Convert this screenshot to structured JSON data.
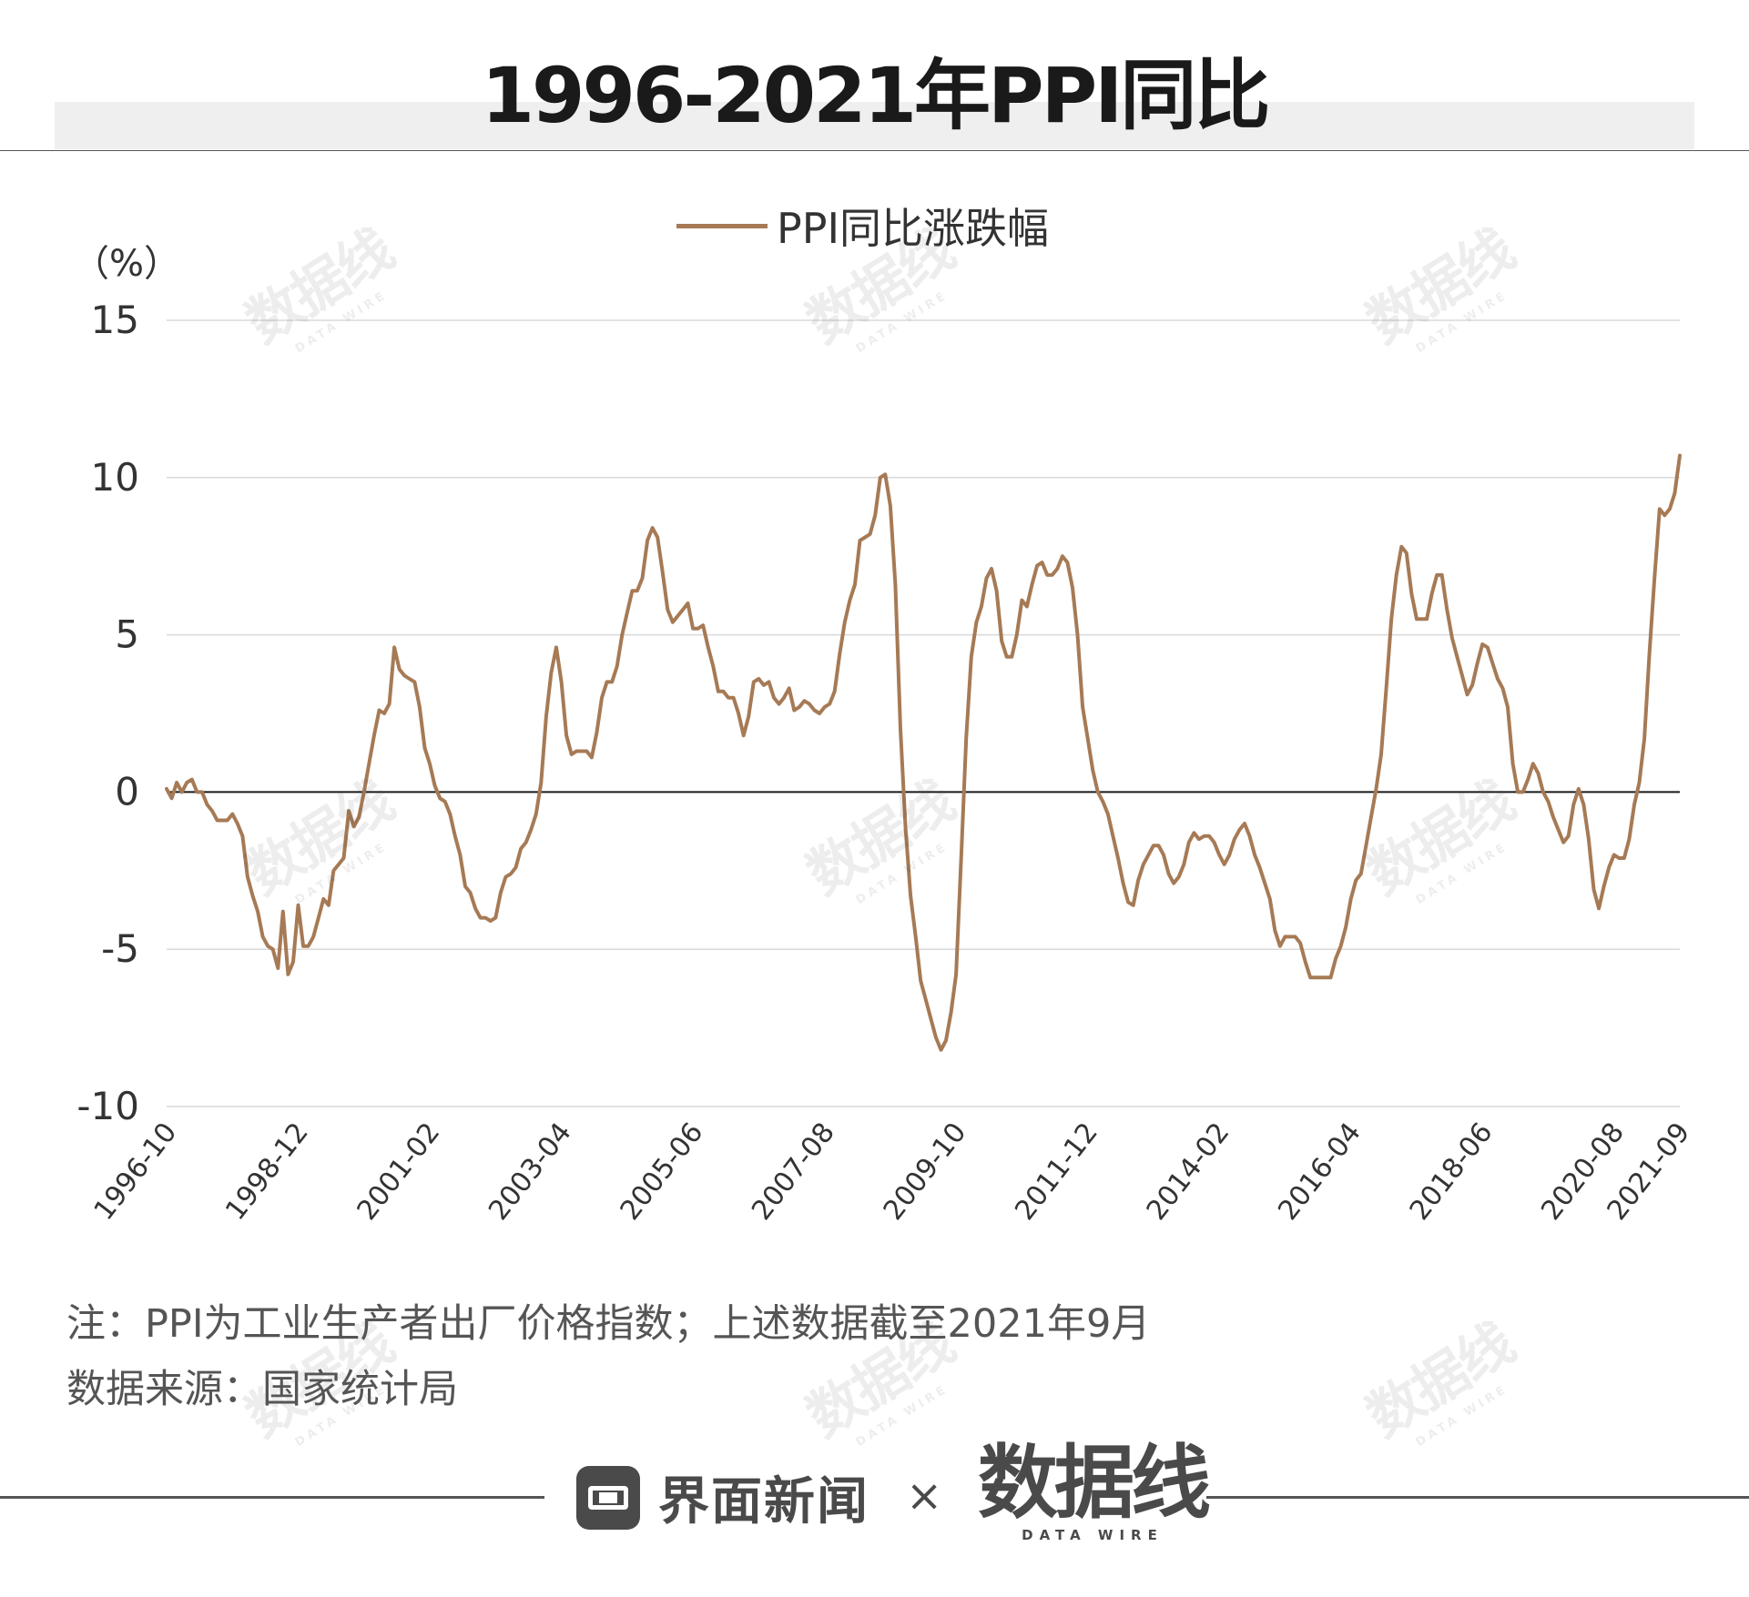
{
  "title": "1996-2021年PPI同比",
  "notes": {
    "line1": "注：PPI为工业生产者出厂价格指数；上述数据截至2021年9月",
    "line2": "数据来源：国家统计局"
  },
  "footer": {
    "brand_name": "界面新闻",
    "separator": "×",
    "partner_cn": "数据线",
    "partner_en": "DATA WIRE"
  },
  "watermark": {
    "cn": "数据线",
    "en": "DATA WIRE"
  },
  "colors": {
    "series": "#a67a55",
    "grid": "#d9d9d9",
    "zero_line": "#1a1a1a",
    "text": "#333333",
    "note_text": "#555555"
  },
  "chart_data": {
    "type": "line",
    "unit_label": "（%）",
    "ylim": [
      -10,
      15
    ],
    "yticks": [
      15,
      10,
      5,
      0,
      -5,
      -10
    ],
    "ytick_labels": [
      "15",
      "10",
      "5",
      "0",
      "-5",
      "-10"
    ],
    "x_start": "1996-10",
    "x_end": "2021-09",
    "frequency": "monthly",
    "x_tick_labels": [
      "1996-10",
      "1998-12",
      "2001-02",
      "2003-04",
      "2005-06",
      "2007-08",
      "2009-10",
      "2011-12",
      "2014-02",
      "2016-04",
      "2018-06",
      "2020-08",
      "2021-09"
    ],
    "grid": "horizontal",
    "legend_position": "top-center",
    "series": [
      {
        "name": "PPI同比涨跌幅",
        "values": [
          0.1,
          -0.2,
          0.3,
          0.0,
          0.3,
          0.4,
          0.0,
          0.0,
          -0.4,
          -0.6,
          -0.9,
          -0.9,
          -0.9,
          -0.7,
          -1.0,
          -1.4,
          -2.7,
          -3.3,
          -3.8,
          -4.6,
          -4.9,
          -5.0,
          -5.6,
          -3.8,
          -5.8,
          -5.4,
          -3.6,
          -4.9,
          -4.9,
          -4.6,
          -4.0,
          -3.4,
          -3.6,
          -2.5,
          -2.3,
          -2.1,
          -0.6,
          -1.1,
          -0.8,
          0.0,
          0.9,
          1.8,
          2.6,
          2.5,
          2.8,
          4.6,
          3.9,
          3.7,
          3.6,
          3.5,
          2.7,
          1.4,
          0.9,
          0.2,
          -0.2,
          -0.3,
          -0.7,
          -1.4,
          -2.0,
          -3.0,
          -3.2,
          -3.7,
          -4.0,
          -4.0,
          -4.1,
          -4.0,
          -3.2,
          -2.7,
          -2.6,
          -2.4,
          -1.8,
          -1.6,
          -1.2,
          -0.7,
          0.3,
          2.4,
          3.8,
          4.6,
          3.5,
          1.8,
          1.2,
          1.3,
          1.3,
          1.3,
          1.1,
          1.9,
          3.0,
          3.5,
          3.5,
          4.0,
          5.0,
          5.7,
          6.4,
          6.4,
          6.8,
          8.0,
          8.4,
          8.1,
          7.0,
          5.8,
          5.4,
          5.6,
          5.8,
          6.0,
          5.2,
          5.2,
          5.3,
          4.6,
          4.0,
          3.2,
          3.2,
          3.0,
          3.0,
          2.5,
          1.8,
          2.4,
          3.5,
          3.6,
          3.4,
          3.5,
          3.0,
          2.8,
          3.0,
          3.3,
          2.6,
          2.7,
          2.9,
          2.8,
          2.6,
          2.5,
          2.7,
          2.8,
          3.2,
          4.4,
          5.4,
          6.1,
          6.6,
          8.0,
          8.1,
          8.2,
          8.8,
          10.0,
          10.1,
          9.1,
          6.6,
          2.0,
          -1.1,
          -3.3,
          -4.6,
          -6.0,
          -6.6,
          -7.2,
          -7.8,
          -8.2,
          -7.9,
          -7.0,
          -5.8,
          -2.1,
          1.7,
          4.3,
          5.4,
          5.9,
          6.8,
          7.1,
          6.4,
          4.8,
          4.3,
          4.3,
          5.0,
          6.1,
          5.9,
          6.6,
          7.2,
          7.3,
          6.9,
          6.9,
          7.1,
          7.5,
          7.3,
          6.5,
          5.0,
          2.7,
          1.7,
          0.7,
          0.0,
          -0.3,
          -0.7,
          -1.4,
          -2.1,
          -2.9,
          -3.5,
          -3.6,
          -2.8,
          -2.3,
          -2.0,
          -1.7,
          -1.7,
          -2.0,
          -2.6,
          -2.9,
          -2.7,
          -2.3,
          -1.6,
          -1.3,
          -1.5,
          -1.4,
          -1.4,
          -1.6,
          -2.0,
          -2.3,
          -2.0,
          -1.5,
          -1.2,
          -1.0,
          -1.4,
          -2.0,
          -2.4,
          -2.9,
          -3.4,
          -4.4,
          -4.9,
          -4.6,
          -4.6,
          -4.6,
          -4.8,
          -5.4,
          -5.9,
          -5.9,
          -5.9,
          -5.9,
          -5.9,
          -5.3,
          -4.9,
          -4.3,
          -3.4,
          -2.8,
          -2.6,
          -1.7,
          -0.8,
          0.1,
          1.2,
          3.3,
          5.5,
          6.9,
          7.8,
          7.6,
          6.3,
          5.5,
          5.5,
          5.5,
          6.3,
          6.9,
          6.9,
          5.8,
          4.9,
          4.3,
          3.7,
          3.1,
          3.4,
          4.1,
          4.7,
          4.6,
          4.1,
          3.6,
          3.3,
          2.7,
          0.9,
          0.0,
          0.0,
          0.4,
          0.9,
          0.6,
          0.0,
          -0.3,
          -0.8,
          -1.2,
          -1.6,
          -1.4,
          -0.4,
          0.1,
          -0.4,
          -1.5,
          -3.1,
          -3.7,
          -3.0,
          -2.4,
          -2.0,
          -2.1,
          -2.1,
          -1.5,
          -0.4,
          0.3,
          1.7,
          4.4,
          6.8,
          9.0,
          8.8,
          9.0,
          9.5,
          10.7
        ]
      }
    ]
  }
}
